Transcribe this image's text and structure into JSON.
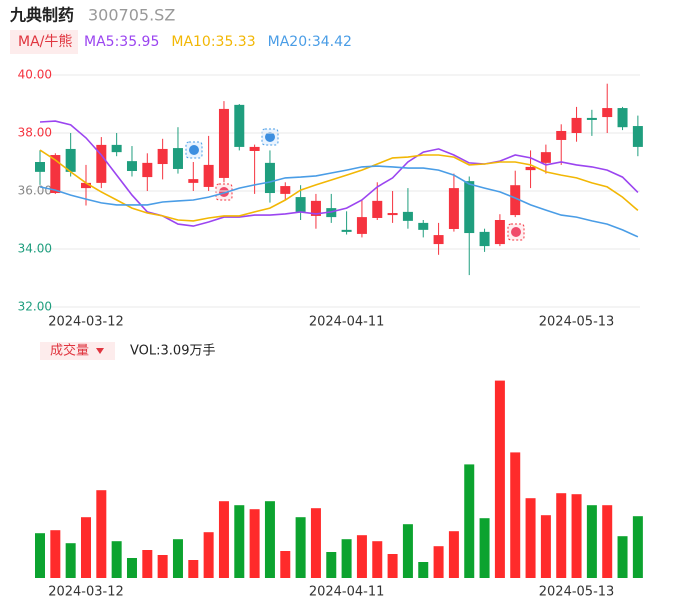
{
  "header": {
    "name": "九典制药",
    "code": "300705.SZ"
  },
  "chart_data": [
    {
      "type": "candlestick",
      "indicator_button": "MA/牛熊",
      "categories": [
        null,
        null,
        null,
        "2024-03-12",
        null,
        null,
        null,
        null,
        null,
        null,
        null,
        null,
        null,
        null,
        null,
        null,
        null,
        null,
        null,
        null,
        "2024-04-11",
        null,
        null,
        null,
        null,
        null,
        null,
        null,
        null,
        null,
        null,
        null,
        null,
        null,
        null,
        "2024-05-13",
        null,
        null,
        null,
        null
      ],
      "ohlc": {
        "open": [
          37.0,
          35.93,
          37.45,
          36.1,
          36.28,
          37.59,
          37.03,
          36.48,
          36.93,
          37.48,
          36.28,
          36.14,
          36.45,
          38.97,
          37.38,
          36.97,
          35.9,
          35.79,
          35.14,
          35.41,
          34.66,
          34.52,
          35.07,
          35.17,
          35.28,
          34.9,
          34.17,
          34.69,
          36.34,
          34.59,
          34.17,
          35.17,
          36.72,
          36.97,
          37.76,
          38.0,
          38.52,
          38.55,
          38.86,
          38.24
        ],
        "high": [
          37.41,
          37.3,
          38.0,
          36.9,
          37.86,
          38.0,
          37.55,
          37.3,
          37.8,
          38.2,
          37.0,
          37.9,
          39.1,
          39.0,
          37.6,
          37.4,
          36.3,
          36.2,
          35.9,
          35.9,
          35.3,
          35.7,
          36.3,
          36.0,
          36.1,
          35.0,
          34.9,
          36.6,
          36.5,
          34.7,
          35.2,
          36.7,
          37.4,
          37.6,
          38.3,
          38.9,
          38.8,
          39.7,
          38.9,
          38.6
        ],
        "low": [
          36.21,
          35.9,
          36.5,
          35.5,
          36.1,
          37.2,
          36.5,
          36.0,
          36.4,
          36.6,
          36.0,
          36.0,
          36.3,
          37.4,
          35.9,
          35.6,
          35.7,
          35.0,
          34.7,
          34.9,
          34.5,
          34.4,
          35.0,
          34.9,
          34.7,
          34.4,
          33.8,
          34.6,
          33.1,
          33.9,
          34.1,
          35.1,
          36.1,
          36.6,
          36.9,
          37.7,
          37.9,
          38.0,
          38.1,
          37.2
        ],
        "close": [
          36.66,
          37.24,
          36.66,
          36.28,
          37.59,
          37.34,
          36.69,
          36.97,
          37.45,
          36.76,
          36.41,
          36.9,
          38.83,
          37.52,
          37.52,
          35.93,
          36.17,
          35.28,
          35.66,
          35.1,
          34.59,
          35.1,
          35.66,
          35.24,
          34.97,
          34.66,
          34.48,
          36.1,
          34.55,
          34.1,
          35.0,
          36.2,
          36.83,
          37.34,
          38.07,
          38.52,
          38.45,
          38.86,
          38.2,
          37.52
        ]
      },
      "up_color": "#f5333f",
      "down_color": "#1f9e7e",
      "series": [
        {
          "name": "MA5:35.95",
          "color": "#9b45f0",
          "values": [
            38.38,
            38.41,
            38.28,
            37.83,
            37.24,
            36.55,
            35.86,
            35.28,
            35.14,
            34.86,
            34.79,
            34.93,
            35.1,
            35.1,
            35.17,
            35.17,
            35.21,
            35.28,
            35.21,
            35.28,
            35.41,
            35.69,
            36.14,
            36.45,
            37.0,
            37.34,
            37.45,
            37.24,
            36.97,
            36.93,
            37.03,
            37.24,
            37.14,
            36.9,
            37.0,
            36.9,
            36.83,
            36.72,
            36.48,
            35.95
          ]
        },
        {
          "name": "MA10:35.33",
          "color": "#f2b705",
          "values": [
            37.41,
            37.07,
            36.66,
            36.28,
            35.97,
            35.69,
            35.41,
            35.24,
            35.14,
            35.0,
            34.97,
            35.07,
            35.14,
            35.14,
            35.28,
            35.41,
            35.69,
            36.03,
            36.21,
            36.38,
            36.55,
            36.72,
            36.93,
            37.14,
            37.17,
            37.24,
            37.24,
            37.17,
            36.9,
            36.93,
            37.0,
            37.0,
            36.9,
            36.66,
            36.55,
            36.45,
            36.28,
            36.14,
            35.79,
            35.33
          ]
        },
        {
          "name": "MA20:34.42",
          "color": "#4a9de6",
          "values": [
            36.14,
            36.03,
            35.86,
            35.72,
            35.59,
            35.52,
            35.52,
            35.52,
            35.62,
            35.66,
            35.69,
            35.79,
            35.93,
            36.1,
            36.21,
            36.31,
            36.45,
            36.48,
            36.52,
            36.62,
            36.72,
            36.83,
            36.86,
            36.83,
            36.79,
            36.79,
            36.72,
            36.55,
            36.24,
            36.1,
            35.97,
            35.76,
            35.52,
            35.34,
            35.17,
            35.1,
            34.97,
            34.86,
            34.66,
            34.42
          ]
        }
      ],
      "ylim": [
        32,
        40
      ],
      "yticks": [
        {
          "value": 32,
          "label": "32.00"
        },
        {
          "value": 34,
          "label": "34.00"
        },
        {
          "value": 36,
          "label": "36.00"
        },
        {
          "value": 38,
          "label": "38.00"
        },
        {
          "value": 40,
          "label": "40.00"
        }
      ],
      "ytick_colors": [
        "#1f9e7e",
        "#1f9e7e",
        "#888888",
        "#f5333f",
        "#f5333f"
      ],
      "grid": true
    },
    {
      "type": "bar",
      "title": "成交量",
      "label": "VOL:3.09万手",
      "categories": [
        null,
        null,
        null,
        "2024-03-12",
        null,
        null,
        null,
        null,
        null,
        null,
        null,
        null,
        null,
        null,
        null,
        null,
        null,
        null,
        null,
        null,
        "2024-04-11",
        null,
        null,
        null,
        null,
        null,
        null,
        null,
        null,
        null,
        null,
        null,
        null,
        null,
        null,
        "2024-05-13",
        null,
        null,
        null,
        null
      ],
      "values": [
        2.24,
        2.39,
        1.74,
        3.04,
        4.39,
        1.84,
        1.0,
        1.4,
        1.15,
        1.94,
        0.9,
        2.29,
        3.84,
        3.64,
        3.44,
        3.84,
        1.35,
        3.04,
        3.49,
        1.3,
        1.94,
        2.14,
        1.84,
        1.2,
        2.69,
        0.8,
        1.59,
        2.34,
        5.68,
        2.99,
        9.87,
        6.28,
        3.99,
        3.14,
        4.24,
        4.19,
        3.64,
        3.64,
        2.09,
        3.09
      ],
      "up_color": "#ff2b2b",
      "down_color": "#0ca32f",
      "ylim": [
        0,
        10
      ]
    }
  ]
}
